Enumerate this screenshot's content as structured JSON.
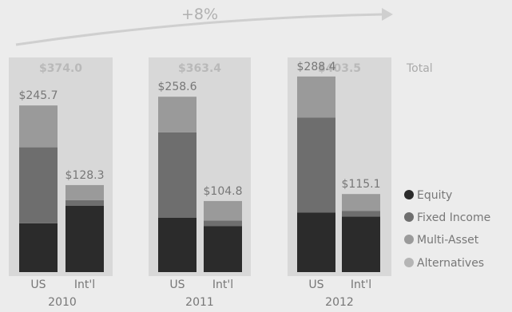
{
  "chart_data": {
    "type": "bar",
    "stacked": true,
    "growth_label": "+8%",
    "total_label": "Total",
    "years": [
      "2010",
      "2011",
      "2012"
    ],
    "bar_labels": [
      "US",
      "Int'l"
    ],
    "categories": [
      "US 2010",
      "Int'l 2010",
      "US 2011",
      "Int'l 2011",
      "US 2012",
      "Int'l 2012"
    ],
    "totals": [
      "$374.0",
      "$363.4",
      "$403.5"
    ],
    "bar_total_labels": [
      "$245.7",
      "$128.3",
      "$258.6",
      "$104.8",
      "$288.4",
      "$115.1"
    ],
    "bar_totals": [
      245.7,
      128.3,
      258.6,
      104.8,
      288.4,
      115.1
    ],
    "series": [
      {
        "name": "Equity",
        "color": "#2b2b2b",
        "values": [
          72,
          98,
          80,
          68,
          88,
          82
        ]
      },
      {
        "name": "Fixed Income",
        "color": "#6e6e6e",
        "values": [
          112,
          8,
          126,
          8,
          140,
          8
        ]
      },
      {
        "name": "Multi-Asset",
        "color": "#9a9a9a",
        "values": [
          61.7,
          22.3,
          52.6,
          28.8,
          60.4,
          25.1
        ]
      },
      {
        "name": "Alternatives",
        "color": "#b5b5b5",
        "values": [
          0,
          0,
          0,
          0,
          0,
          0
        ]
      }
    ],
    "legend": [
      "Equity",
      "Fixed Income",
      "Multi-Asset",
      "Alternatives"
    ],
    "legend_position": "right",
    "ylim": [
      0,
      300
    ],
    "grid": false,
    "colors": {
      "background": "#ececec",
      "total_box": "#d8d8d8",
      "total_text": "#b9b9b9",
      "label_text": "#777777",
      "arrow": "#cfcfcf"
    }
  }
}
